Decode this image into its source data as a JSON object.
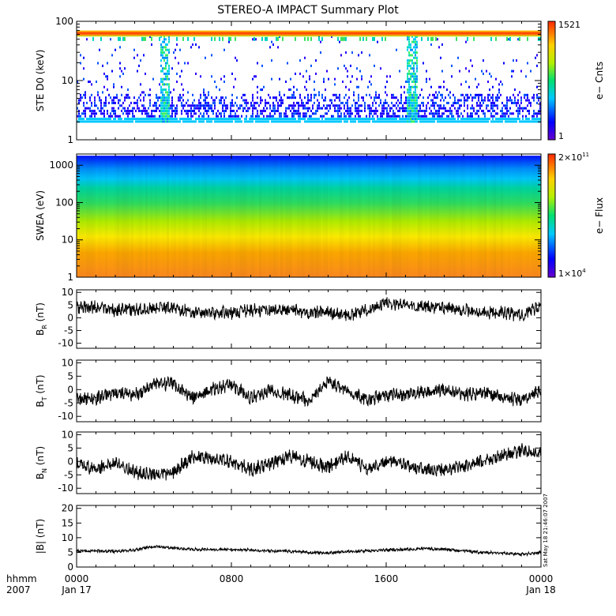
{
  "title": "STEREO-A IMPACT Summary Plot",
  "corner_labels": [
    "hhmm",
    "2007"
  ],
  "stamp": "Sat May 18 21:46:07 2007",
  "x_ticks": [
    {
      "t": 0,
      "top": "0000",
      "bottom": "Jan 17"
    },
    {
      "t": 8,
      "top": "0800",
      "bottom": ""
    },
    {
      "t": 16,
      "top": "1600",
      "bottom": ""
    },
    {
      "t": 24,
      "top": "0000",
      "bottom": "Jan 18"
    }
  ],
  "chart_data": [
    {
      "type": "heatmap",
      "ylabel": "STE D0 (keV)",
      "yscale": "log",
      "ylim": [
        1,
        100
      ],
      "yticks": [
        "1",
        "10",
        "100"
      ],
      "xlim": [
        0,
        24
      ],
      "colorbar": {
        "label": "e− Cnts",
        "max": "1521",
        "min": "1",
        "scale": "log"
      },
      "features": [
        {
          "band_keV": [
            55,
            70
          ],
          "level": "max",
          "span_hours": [
            0,
            24
          ]
        },
        {
          "band_keV": [
            2,
            5
          ],
          "level": "low-mid",
          "span_hours": [
            0,
            24
          ]
        },
        {
          "enhancement_hours": [
            4.3,
            4.8,
            17.0,
            17.6
          ]
        }
      ]
    },
    {
      "type": "heatmap",
      "ylabel": "SWEA (eV)",
      "yscale": "log",
      "ylim": [
        1,
        2000
      ],
      "yticks": [
        "1",
        "10",
        "100",
        "1000"
      ],
      "xlim": [
        0,
        24
      ],
      "colorbar": {
        "label": "e− Flux",
        "max_base": "2×10",
        "max_exp": "11",
        "min_base": "1×10",
        "min_exp": "4",
        "scale": "log"
      }
    },
    {
      "type": "line",
      "ylabel": "B",
      "ylabel_sub": "R",
      "yunit": "(nT)",
      "ylim": [
        -12,
        11
      ],
      "yticks": [
        -10,
        -5,
        0,
        5,
        10
      ],
      "xlim": [
        0,
        24
      ],
      "x": [
        0,
        1,
        2,
        3,
        4,
        5,
        6,
        7,
        8,
        9,
        10,
        11,
        12,
        13,
        14,
        15,
        16,
        17,
        18,
        19,
        20,
        21,
        22,
        23,
        24
      ],
      "values": [
        4,
        4,
        3,
        3,
        4,
        4,
        2,
        2,
        2,
        3,
        3,
        3,
        2,
        2,
        1,
        3,
        6,
        5,
        4,
        4,
        3,
        2,
        2,
        1,
        5
      ]
    },
    {
      "type": "line",
      "ylabel": "B",
      "ylabel_sub": "T",
      "yunit": "(nT)",
      "ylim": [
        -12,
        11
      ],
      "yticks": [
        -10,
        -5,
        0,
        5,
        10
      ],
      "xlim": [
        0,
        24
      ],
      "x": [
        0,
        1,
        2,
        3,
        4,
        5,
        6,
        7,
        8,
        9,
        10,
        11,
        12,
        13,
        14,
        15,
        16,
        17,
        18,
        19,
        20,
        21,
        22,
        23,
        24
      ],
      "values": [
        -4,
        -3,
        -1,
        -2,
        2,
        2,
        -3,
        0,
        2,
        -3,
        0,
        -2,
        -4,
        3,
        0,
        -4,
        -2,
        -2,
        -1,
        0,
        -2,
        -1,
        -3,
        -4,
        0
      ]
    },
    {
      "type": "line",
      "ylabel": "B",
      "ylabel_sub": "N",
      "yunit": "(nT)",
      "ylim": [
        -12,
        11
      ],
      "yticks": [
        -10,
        -5,
        0,
        5,
        10
      ],
      "xlim": [
        0,
        24
      ],
      "x": [
        0,
        1,
        2,
        3,
        4,
        5,
        6,
        7,
        8,
        9,
        10,
        11,
        12,
        13,
        14,
        15,
        16,
        17,
        18,
        19,
        20,
        21,
        22,
        23,
        24
      ],
      "values": [
        -1,
        -3,
        0,
        -4,
        -5,
        -4,
        2,
        1,
        0,
        -3,
        -1,
        2,
        0,
        -2,
        2,
        -3,
        0,
        -1,
        -3,
        -3,
        -2,
        0,
        2,
        4,
        3
      ]
    },
    {
      "type": "line",
      "ylabel": "|B| (nT)",
      "ylim": [
        0,
        21
      ],
      "yticks": [
        0,
        5,
        10,
        15,
        20
      ],
      "xlim": [
        0,
        24
      ],
      "x": [
        0,
        1,
        2,
        3,
        4,
        5,
        6,
        7,
        8,
        9,
        10,
        11,
        12,
        13,
        14,
        15,
        16,
        17,
        18,
        19,
        20,
        21,
        22,
        23,
        24
      ],
      "values": [
        5.5,
        5.5,
        5.3,
        5.8,
        7,
        6.5,
        6,
        6,
        6,
        5.8,
        5.5,
        5.3,
        5,
        4.8,
        5.3,
        5.5,
        5.8,
        6,
        6.3,
        6,
        5.5,
        5,
        4.8,
        4.3,
        5
      ]
    }
  ]
}
